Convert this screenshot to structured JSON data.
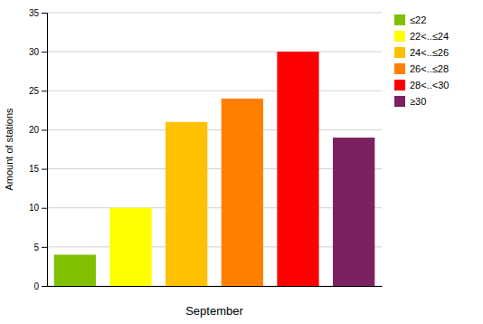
{
  "chart_data": {
    "type": "bar",
    "xlabel": "September",
    "ylabel": "Amount of stations",
    "categories": [
      "≤22",
      "22<..≤24",
      "24<..≤26",
      "26<..≤28",
      "28<..<30",
      "≥30"
    ],
    "values": [
      4,
      10,
      21,
      24,
      30,
      19
    ],
    "colors": [
      "#80c000",
      "#ffff00",
      "#ffc000",
      "#ff8000",
      "#ff0000",
      "#7b2060"
    ],
    "ylim": [
      0,
      35
    ],
    "yticks": [
      0,
      5,
      10,
      15,
      20,
      25,
      30,
      35
    ],
    "grid": true,
    "legend": "upper right",
    "tick_labels": "y"
  }
}
